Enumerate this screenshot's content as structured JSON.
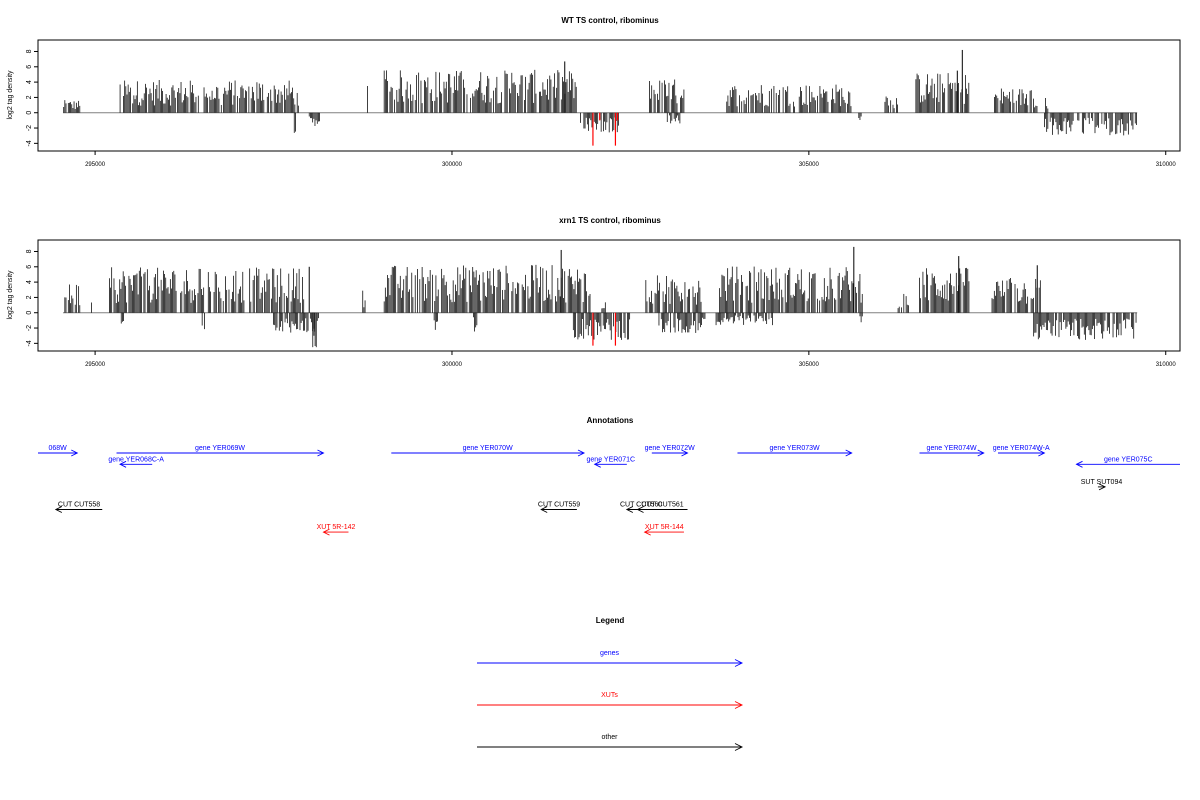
{
  "chart_data": [
    {
      "type": "bar",
      "title": "WT TS control, ribominus",
      "ylabel": "log2 tag density",
      "xlim": [
        294200,
        310200
      ],
      "ylim": [
        -5,
        9.5
      ],
      "yticks": [
        -4,
        -2,
        0,
        2,
        4,
        6,
        8
      ],
      "xticks": [
        295000,
        300000,
        305000,
        310000
      ],
      "xtick_labels": [
        "295000",
        "300000",
        "305000",
        "310000"
      ],
      "baseline_range": [
        294550,
        309600
      ],
      "colors": {
        "bars": "#000000",
        "highlight": "#ff0000",
        "baseline": "#808080",
        "axis": "#000000"
      },
      "positive_segments": [
        {
          "start": 294560,
          "end": 294800,
          "mean": 1.0
        },
        {
          "start": 295350,
          "end": 297850,
          "mean": 2.6
        },
        {
          "start": 298800,
          "end": 298830,
          "mean": 2.5
        },
        {
          "start": 299050,
          "end": 301750,
          "mean": 3.4
        },
        {
          "start": 302750,
          "end": 303250,
          "mean": 2.7
        },
        {
          "start": 303850,
          "end": 305650,
          "mean": 2.3
        },
        {
          "start": 306050,
          "end": 306250,
          "mean": 1.6
        },
        {
          "start": 306500,
          "end": 307250,
          "mean": 3.2
        },
        {
          "start": 307600,
          "end": 308200,
          "mean": 2.0
        },
        {
          "start": 308300,
          "end": 308350,
          "mean": 1.2
        }
      ],
      "negative_segments": [
        {
          "start": 297790,
          "end": 297810,
          "mean": -1.8
        },
        {
          "start": 298000,
          "end": 298160,
          "mean": -1.1
        },
        {
          "start": 301800,
          "end": 302400,
          "mean": -1.6
        },
        {
          "start": 303000,
          "end": 303200,
          "mean": -0.9
        },
        {
          "start": 305700,
          "end": 305750,
          "mean": -1.0
        },
        {
          "start": 308300,
          "end": 309600,
          "mean": -1.8
        }
      ],
      "peaks": [
        {
          "x": 301580,
          "y": 6.7
        },
        {
          "x": 307150,
          "y": 8.2
        },
        {
          "x": 307080,
          "y": 5.5
        }
      ],
      "highlight_bars": [
        {
          "x": 301975,
          "y": -4.3
        },
        {
          "x": 302070,
          "y": -1.0
        },
        {
          "x": 302290,
          "y": -4.3
        },
        {
          "x": 302320,
          "y": -1.0
        }
      ]
    },
    {
      "type": "bar",
      "title": "xrn1 TS control, ribominus",
      "ylabel": "log2 tag density",
      "xlim": [
        294200,
        310200
      ],
      "ylim": [
        -5,
        9.5
      ],
      "yticks": [
        -4,
        -2,
        0,
        2,
        4,
        6,
        8
      ],
      "xticks": [
        295000,
        300000,
        305000,
        310000
      ],
      "xtick_labels": [
        "295000",
        "300000",
        "305000",
        "310000"
      ],
      "baseline_range": [
        294550,
        309600
      ],
      "colors": {
        "bars": "#000000",
        "highlight": "#ff0000",
        "baseline": "#808080",
        "axis": "#000000"
      },
      "positive_segments": [
        {
          "start": 294560,
          "end": 294800,
          "mean": 2.3
        },
        {
          "start": 294950,
          "end": 294980,
          "mean": 3.0
        },
        {
          "start": 295200,
          "end": 297950,
          "mean": 3.6
        },
        {
          "start": 298750,
          "end": 298800,
          "mean": 2.0
        },
        {
          "start": 299050,
          "end": 301950,
          "mean": 3.8
        },
        {
          "start": 302100,
          "end": 302150,
          "mean": 1.2
        },
        {
          "start": 302700,
          "end": 303500,
          "mean": 3.0
        },
        {
          "start": 303750,
          "end": 305750,
          "mean": 3.7
        },
        {
          "start": 306250,
          "end": 306400,
          "mean": 1.5
        },
        {
          "start": 306550,
          "end": 307250,
          "mean": 3.6
        },
        {
          "start": 307550,
          "end": 308250,
          "mean": 2.8
        }
      ],
      "negative_segments": [
        {
          "start": 295350,
          "end": 295400,
          "mean": -1.0
        },
        {
          "start": 296500,
          "end": 296550,
          "mean": -1.8
        },
        {
          "start": 297500,
          "end": 298150,
          "mean": -1.6
        },
        {
          "start": 298050,
          "end": 298100,
          "mean": -4.3
        },
        {
          "start": 299750,
          "end": 299800,
          "mean": -1.4
        },
        {
          "start": 300300,
          "end": 300350,
          "mean": -1.6
        },
        {
          "start": 301700,
          "end": 302500,
          "mean": -2.2
        },
        {
          "start": 302900,
          "end": 303550,
          "mean": -1.6
        },
        {
          "start": 303700,
          "end": 304500,
          "mean": -1.0
        },
        {
          "start": 305700,
          "end": 305750,
          "mean": -1.0
        },
        {
          "start": 308150,
          "end": 309600,
          "mean": -2.2
        }
      ],
      "peaks": [
        {
          "x": 301530,
          "y": 8.2
        },
        {
          "x": 305630,
          "y": 8.6
        },
        {
          "x": 307100,
          "y": 7.4
        },
        {
          "x": 298000,
          "y": 6.0
        },
        {
          "x": 308200,
          "y": 6.2
        }
      ],
      "highlight_bars": [
        {
          "x": 301975,
          "y": -4.3
        },
        {
          "x": 302290,
          "y": -4.3
        }
      ]
    }
  ],
  "annotations": {
    "title": "Annotations",
    "features": [
      {
        "label": "068W",
        "start": 294200,
        "end": 294750,
        "strand": "+",
        "color": "#0000ff",
        "row": 0
      },
      {
        "label": "gene YER068C-A",
        "start": 295350,
        "end": 295800,
        "strand": "-",
        "color": "#0000ff",
        "row": 1
      },
      {
        "label": "gene YER069W",
        "start": 295300,
        "end": 298200,
        "strand": "+",
        "color": "#0000ff",
        "row": 0
      },
      {
        "label": "gene YER070W",
        "start": 299150,
        "end": 301850,
        "strand": "+",
        "color": "#0000ff",
        "row": 0
      },
      {
        "label": "gene YER071C",
        "start": 302000,
        "end": 302450,
        "strand": "-",
        "color": "#0000ff",
        "row": 1
      },
      {
        "label": "gene YER072W",
        "start": 302800,
        "end": 303300,
        "strand": "+",
        "color": "#0000ff",
        "row": 0
      },
      {
        "label": "gene YER073W",
        "start": 304000,
        "end": 305600,
        "strand": "+",
        "color": "#0000ff",
        "row": 0
      },
      {
        "label": "gene YER074W",
        "start": 306550,
        "end": 307450,
        "strand": "+",
        "color": "#0000ff",
        "row": 0
      },
      {
        "label": "gene YER074W-A",
        "start": 307650,
        "end": 308300,
        "strand": "+",
        "color": "#0000ff",
        "row": 0
      },
      {
        "label": "gene YER075C",
        "start": 308750,
        "end": 310200,
        "strand": "-",
        "color": "#0000ff",
        "row": 1
      },
      {
        "label": "SUT SUT094",
        "start": 309050,
        "end": 309150,
        "strand": "+",
        "color": "#000000",
        "row": 3
      },
      {
        "label": "CUT CUT558",
        "start": 294450,
        "end": 295100,
        "strand": "-",
        "color": "#000000",
        "row": 5
      },
      {
        "label": "CUT CUT559",
        "start": 301250,
        "end": 301750,
        "strand": "-",
        "color": "#000000",
        "row": 5
      },
      {
        "label": "CUT CUT560",
        "start": 302450,
        "end": 302850,
        "strand": "-",
        "color": "#000000",
        "row": 5
      },
      {
        "label": "CUT CUT561",
        "start": 302600,
        "end": 303300,
        "strand": "-",
        "color": "#000000",
        "row": 5
      },
      {
        "label": "XUT 5R-142",
        "start": 298200,
        "end": 298550,
        "strand": "-",
        "color": "#ff0000",
        "row": 7
      },
      {
        "label": "XUT 5R-144",
        "start": 302700,
        "end": 303250,
        "strand": "-",
        "color": "#ff0000",
        "row": 7
      }
    ]
  },
  "legend": {
    "title": "Legend",
    "items": [
      {
        "label": "genes",
        "color": "#0000ff"
      },
      {
        "label": "XUTs",
        "color": "#ff0000"
      },
      {
        "label": "other",
        "color": "#000000"
      }
    ]
  }
}
